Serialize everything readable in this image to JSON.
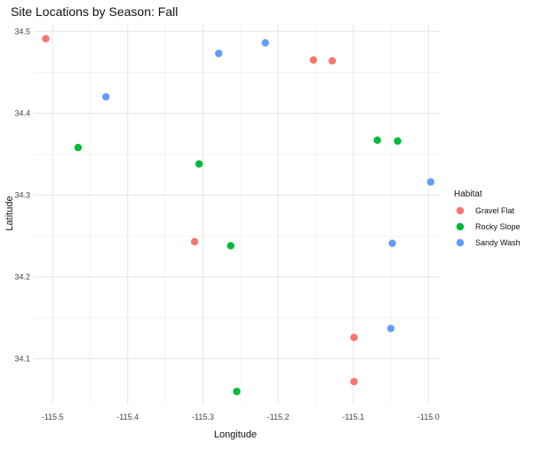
{
  "chart_data": {
    "type": "scatter",
    "title": "Site Locations by Season: Fall",
    "xlabel": "Longitude",
    "ylabel": "Latitude",
    "xlim": [
      -115.525,
      -114.985
    ],
    "ylim": [
      34.044,
      34.509
    ],
    "x_ticks": [
      -115.5,
      -115.4,
      -115.3,
      -115.2,
      -115.1,
      -115.0
    ],
    "x_tick_labels": [
      "-115.5",
      "-115.4",
      "-115.3",
      "-115.2",
      "-115.1",
      "-115.0"
    ],
    "y_ticks": [
      34.1,
      34.2,
      34.3,
      34.4,
      34.5
    ],
    "y_tick_labels": [
      "34.1",
      "34.2",
      "34.3",
      "34.4",
      "34.5"
    ],
    "grid": true,
    "legend": {
      "title": "Habitat",
      "position": "right"
    },
    "series": [
      {
        "name": "Gravel Flat",
        "color": "#F8766D",
        "points": [
          {
            "x": -115.509,
            "y": 34.491
          },
          {
            "x": -115.153,
            "y": 34.465
          },
          {
            "x": -115.128,
            "y": 34.464
          },
          {
            "x": -115.311,
            "y": 34.243
          },
          {
            "x": -115.099,
            "y": 34.126
          },
          {
            "x": -115.099,
            "y": 34.072
          }
        ]
      },
      {
        "name": "Rocky Slope",
        "color": "#00BA38",
        "points": [
          {
            "x": -115.466,
            "y": 34.358
          },
          {
            "x": -115.305,
            "y": 34.338
          },
          {
            "x": -115.068,
            "y": 34.367
          },
          {
            "x": -115.041,
            "y": 34.366
          },
          {
            "x": -115.263,
            "y": 34.238
          },
          {
            "x": -115.255,
            "y": 34.06
          }
        ]
      },
      {
        "name": "Sandy Wash",
        "color": "#619CFF",
        "points": [
          {
            "x": -115.279,
            "y": 34.473
          },
          {
            "x": -115.217,
            "y": 34.486
          },
          {
            "x": -115.429,
            "y": 34.42
          },
          {
            "x": -114.997,
            "y": 34.316
          },
          {
            "x": -115.048,
            "y": 34.241
          },
          {
            "x": -115.05,
            "y": 34.137
          }
        ]
      }
    ]
  }
}
